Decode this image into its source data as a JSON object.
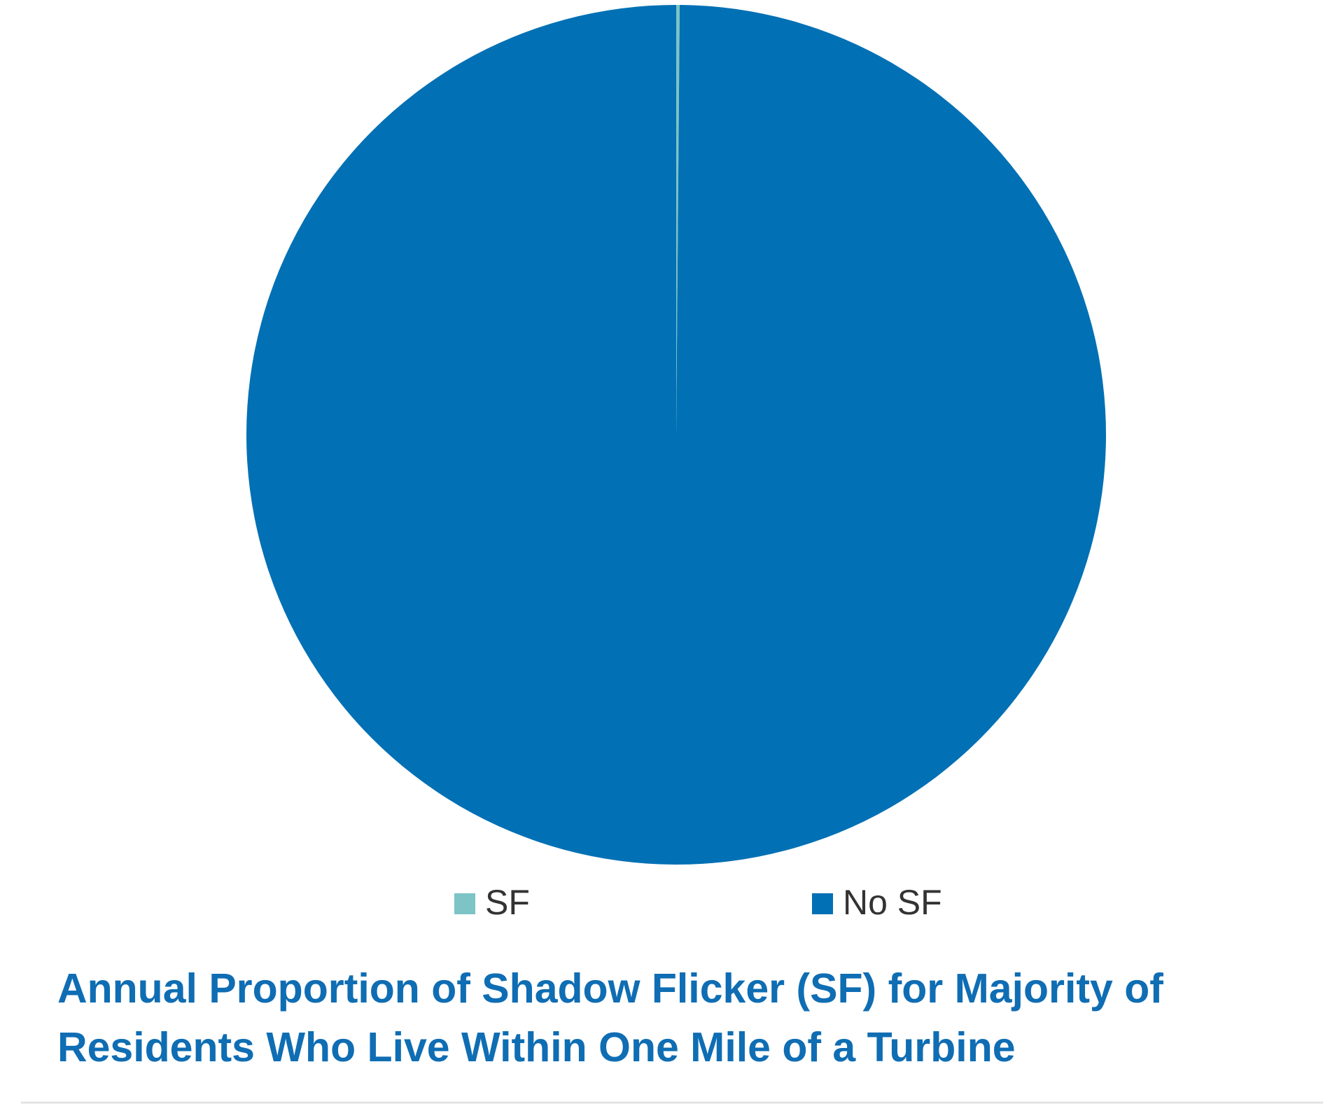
{
  "chart_data": {
    "type": "pie",
    "title": "Annual Proportion of Shadow Flicker (SF) for Majority of Residents Who Live Within One Mile of a Turbine",
    "categories": [
      "SF",
      "No SF"
    ],
    "values": [
      0.13,
      99.87
    ],
    "colors": [
      "#7cc4c6",
      "#0270b4"
    ]
  }
}
